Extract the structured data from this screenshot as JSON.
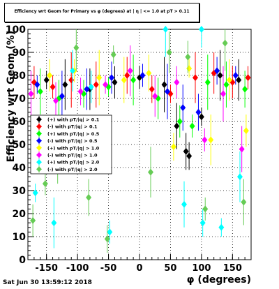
{
  "chart_data": {
    "type": "scatter",
    "title": "Efficiency wrt Geom for Primary vs φ (degrees) at | η | <= 1.0 at pT > 0.11",
    "xlabel": "φ (degrees)",
    "ylabel": "Efficiency wrt Geom (%)",
    "xlim": [
      -180,
      180
    ],
    "ylim": [
      0,
      100
    ],
    "xticks": [
      -150,
      -100,
      -50,
      0,
      50,
      100,
      150
    ],
    "yticks": [
      0,
      10,
      20,
      30,
      40,
      50,
      60,
      70,
      80,
      90,
      100
    ],
    "grid": true,
    "legend_placement": "left-middle",
    "series": [
      {
        "name": "(+) with pT/|q| > 0.1",
        "color": "#000000",
        "x": [
          -150,
          -120,
          -80,
          -40,
          0,
          40,
          60,
          75,
          80,
          100,
          130,
          160
        ],
        "y": [
          78,
          76,
          74,
          77,
          79,
          76,
          58,
          47,
          45,
          62,
          80,
          78
        ]
      },
      {
        "name": "(-) with pT/|q| > 0.1",
        "color": "#ff0000",
        "x": [
          -170,
          -140,
          -110,
          -70,
          -20,
          20,
          50,
          90,
          120,
          150,
          175
        ],
        "y": [
          77,
          75,
          78,
          76,
          80,
          74,
          72,
          79,
          81,
          77,
          79
        ]
      },
      {
        "name": "(+) with pT/|q| > 0.5",
        "color": "#00ff00",
        "x": [
          -160,
          -130,
          -90,
          -50,
          -10,
          30,
          65,
          85,
          110,
          140,
          170
        ],
        "y": [
          73,
          70,
          72,
          75,
          78,
          70,
          60,
          58,
          77,
          76,
          74
        ]
      },
      {
        "name": "(-) with pT/|q| > 0.5",
        "color": "#0000ff",
        "x": [
          -165,
          -125,
          -85,
          -45,
          5,
          45,
          70,
          95,
          125,
          155
        ],
        "y": [
          76,
          71,
          74,
          79,
          80,
          73,
          66,
          64,
          82,
          80
        ]
      },
      {
        "name": "(+) with pT/|q| > 1.0",
        "color": "#ffff00",
        "x": [
          -145,
          -105,
          -65,
          -25,
          15,
          55,
          80,
          115,
          145,
          172
        ],
        "y": [
          80,
          82,
          79,
          78,
          81,
          49,
          83,
          52,
          78,
          56
        ]
      },
      {
        "name": "(-) with pT/|q| > 1.0",
        "color": "#ff00ff",
        "x": [
          -175,
          -135,
          -95,
          -55,
          -15,
          25,
          60,
          105,
          135,
          165
        ],
        "y": [
          72,
          69,
          73,
          76,
          82,
          71,
          77,
          52,
          72,
          48
        ]
      },
      {
        "name": "(+) with pT/|q| > 2.0",
        "color": "#00ffff",
        "x": [
          -168,
          -138,
          -108,
          -78,
          -48,
          42,
          72,
          100,
          102,
          132,
          162
        ],
        "y": [
          29,
          16,
          82,
          75,
          12,
          100,
          24,
          100,
          16,
          14,
          36
        ]
      },
      {
        "name": "(-) with pT/|q| > 2.0",
        "color": "#66cc55",
        "x": [
          -172,
          -152,
          -132,
          -102,
          -82,
          -52,
          -42,
          18,
          48,
          78,
          106,
          138,
          168
        ],
        "y": [
          17,
          33,
          45,
          92,
          27,
          9,
          89,
          38,
          90,
          88,
          22,
          94,
          25
        ]
      }
    ]
  },
  "footer": {
    "timestamp": "Sat Jun 30 13:59:12 2018"
  }
}
